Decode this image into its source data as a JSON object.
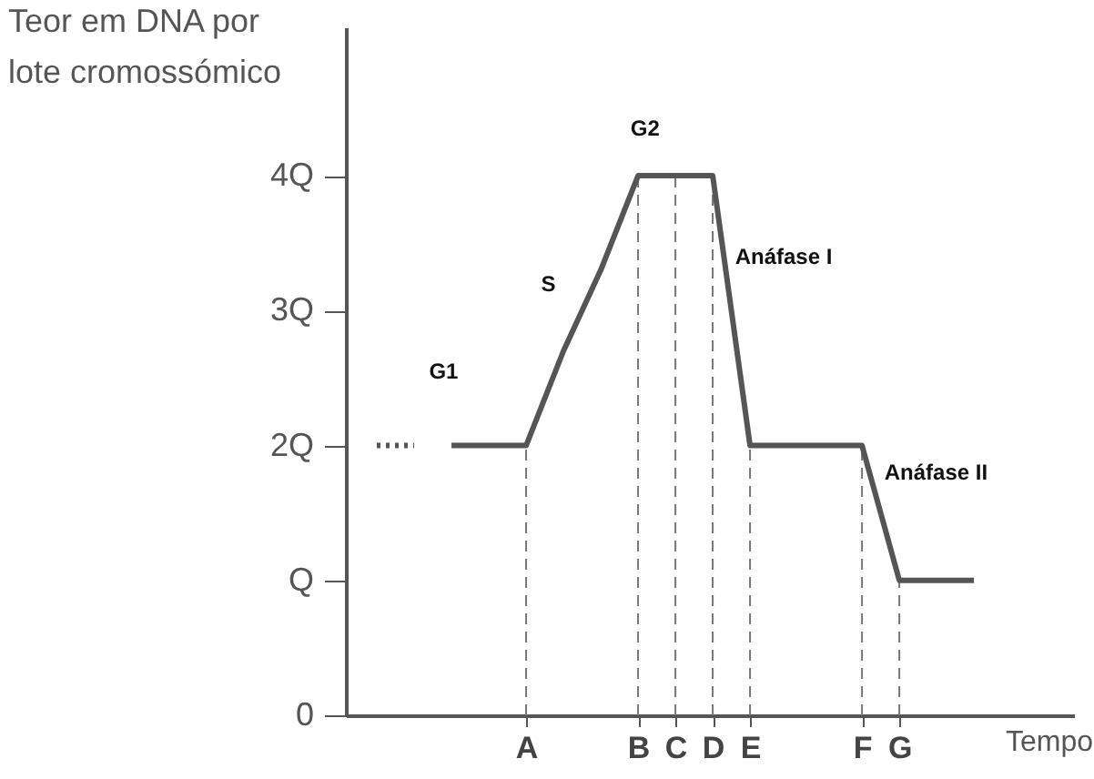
{
  "chart_data": {
    "type": "line",
    "xlabel": "Tempo",
    "ylabel": "Teor em DNA por\nlote cromossómico",
    "categories": [
      null,
      null,
      null,
      null,
      "A",
      null,
      null,
      "B",
      "C",
      "D",
      "E",
      null,
      null,
      "F",
      "G",
      null,
      null
    ],
    "ylim": [
      0,
      5.1
    ],
    "yticks": [
      0,
      {
        "value": 1,
        "label": "Q"
      },
      {
        "value": 2,
        "label": "2Q"
      },
      {
        "value": 3,
        "label": "3Q"
      },
      {
        "value": 4,
        "label": "4Q"
      }
    ],
    "series": [
      {
        "color": "#555555",
        "line_style": "dotted",
        "values": [
          2,
          2,
          null,
          null,
          null,
          null,
          null,
          null,
          null,
          null,
          null,
          null,
          null,
          null,
          null,
          null,
          null
        ]
      },
      {
        "color": "#555555",
        "line_style": "solid",
        "values": [
          null,
          null,
          2,
          2,
          2,
          2.7,
          3.3,
          4,
          4,
          4,
          2,
          2,
          2,
          2,
          1,
          1,
          1
        ]
      }
    ],
    "ref_lines": [
      {
        "axis": "x",
        "value": "A",
        "line_style": "dashed",
        "color": "#777777"
      },
      {
        "axis": "x",
        "value": "B",
        "line_style": "dashed",
        "color": "#777777"
      },
      {
        "axis": "x",
        "value": "C",
        "line_style": "dashed",
        "color": "#777777"
      },
      {
        "axis": "x",
        "value": "D",
        "line_style": "dashed",
        "color": "#777777"
      },
      {
        "axis": "x",
        "value": "E",
        "line_style": "dashed",
        "color": "#777777"
      },
      {
        "axis": "x",
        "value": "F",
        "line_style": "dashed",
        "color": "#777777"
      },
      {
        "axis": "x",
        "value": "G",
        "line_style": "dashed",
        "color": "#777777"
      }
    ],
    "annotations": [
      "G1",
      "S",
      "G2",
      "Anáfase I",
      "Anáfase II"
    ],
    "grid": false
  }
}
